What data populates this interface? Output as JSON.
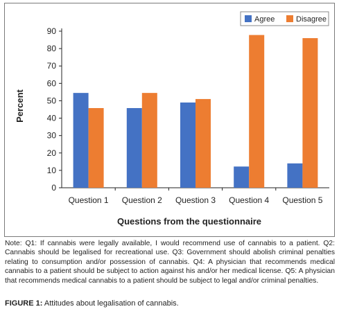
{
  "chart_data": {
    "type": "bar",
    "categories": [
      "Question 1",
      "Question 2",
      "Question 3",
      "Question 4",
      "Question 5"
    ],
    "series": [
      {
        "name": "Agree",
        "color": "#4472c4",
        "values": [
          54.5,
          45.8,
          49,
          12.2,
          14
        ]
      },
      {
        "name": "Disagree",
        "color": "#ed7d31",
        "values": [
          45.8,
          54.5,
          51,
          87.8,
          86
        ]
      }
    ],
    "xlabel": "Questions from the questionnaire",
    "ylabel": "Percent",
    "ylim": [
      0,
      90
    ],
    "yticks": [
      0,
      10,
      20,
      30,
      40,
      50,
      60,
      70,
      80,
      90
    ],
    "grid": false,
    "legend": "top-right"
  },
  "note": "Note: Q1: If cannabis were legally available, I would recommend use of cannabis to a patient. Q2: Cannabis should be legalised for recreational use. Q3: Government should abolish criminal penalties relating to consumption and/or possession of cannabis. Q4: A physician that recommends medical cannabis to a patient should be subject to action against his and/or her medical license. Q5: A physician that recommends medical cannabis to a patient should be subject to legal and/or criminal penalties.",
  "caption": {
    "label": "FIGURE 1:",
    "text": " Attitudes about legalisation of cannabis."
  }
}
